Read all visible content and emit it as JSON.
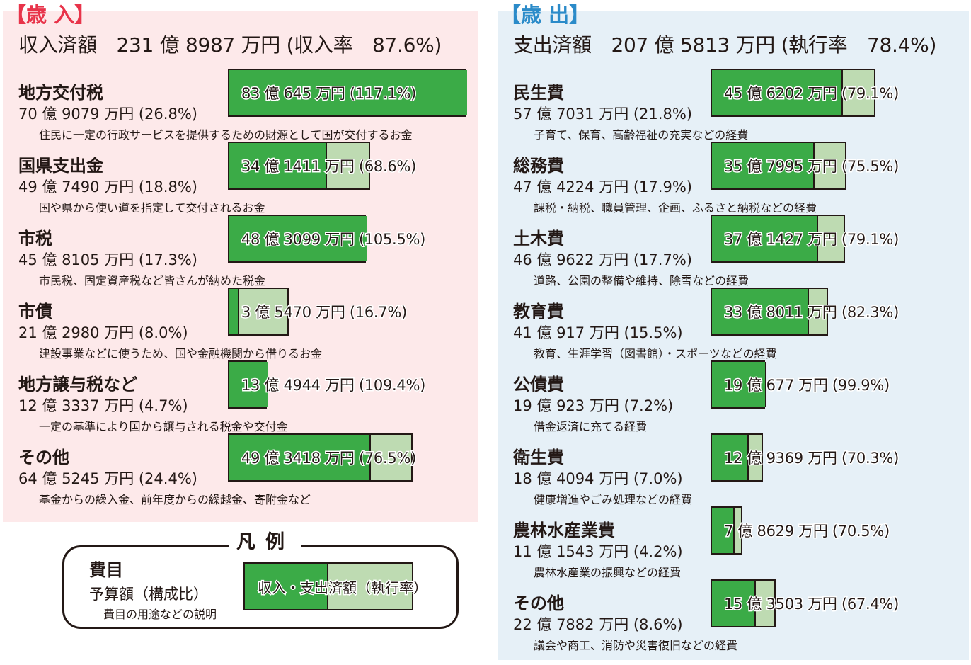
{
  "revenue": {
    "title": "【歳 入】",
    "summary": "収入済額　231 億 8987 万円 (収入率　87.6%)"
  },
  "expenditure": {
    "title": "【歳 出】",
    "summary": "支出済額　207 億 5813 万円 (執行率　78.4%)"
  },
  "legend": {
    "title": "凡例",
    "category": "費目",
    "budget": "予算額（構成比）",
    "description": "費目の用途などの説明",
    "bar_text": "収入・支出済額（執行率）"
  },
  "colors": {
    "revenue_bg": "#fde9ea",
    "expenditure_bg": "#e6f0f7",
    "revenue_title": "#e8344a",
    "expenditure_title": "#2b8bc9",
    "fill_dark": "#3bab47",
    "fill_light": "#bedbb2"
  },
  "chart_data": [
    {
      "type": "bar",
      "title": "【歳 入】",
      "subtitle": "収入済額　231 億 8987 万円 (収入率　87.6%)",
      "categories": [
        "地方交付税",
        "国県支出金",
        "市税",
        "市債",
        "地方譲与税など",
        "その他"
      ],
      "series": [
        {
          "name": "予算額",
          "values": [
            709079,
            497490,
            458105,
            212980,
            123337,
            645245
          ]
        },
        {
          "name": "収入済額",
          "values": [
            830645,
            341411,
            483099,
            35470,
            134944,
            493418
          ]
        }
      ],
      "rate_percent": [
        117.1,
        68.6,
        105.5,
        16.7,
        109.4,
        76.5
      ],
      "labels": {
        "budget": [
          "70 億 9079 万円 (26.8%)",
          "49 億 7490 万円 (18.8%)",
          "45 億 8105 万円 (17.3%)",
          "21 億 2980 万円 (8.0%)",
          "12 億 3337 万円 (4.7%)",
          "64 億 5245 万円 (24.4%)"
        ],
        "actual": [
          "83 億 645 万円 (117.1%)",
          "34 億 1411 万円 (68.6%)",
          "48 億 3099 万円 (105.5%)",
          "3 億 5470 万円 (16.7%)",
          "13 億 4944 万円 (109.4%)",
          "49 億 3418 万円 (76.5%)"
        ],
        "description": [
          "住民に一定の行政サービスを提供するための財源として国が交付するお金",
          "国や県から使い道を指定して交付されるお金",
          "市民税、固定資産税など皆さんが納めた税金",
          "建設事業などに使うため、国や金融機関から借りるお金",
          "一定の基準により国から譲与される税金や交付金",
          "基金からの繰入金、前年度からの繰越金、寄附金など"
        ]
      }
    },
    {
      "type": "bar",
      "title": "【歳 出】",
      "subtitle": "支出済額　207 億 5813 万円 (執行率　78.4%)",
      "categories": [
        "民生費",
        "総務費",
        "土木費",
        "教育費",
        "公債費",
        "衛生費",
        "農林水産業費",
        "その他"
      ],
      "series": [
        {
          "name": "予算額",
          "values": [
            577031,
            474224,
            469622,
            410917,
            190923,
            184094,
            111543,
            227882
          ]
        },
        {
          "name": "支出済額",
          "values": [
            456202,
            357995,
            371427,
            338011,
            190677,
            129369,
            78629,
            153503
          ]
        }
      ],
      "rate_percent": [
        79.1,
        75.5,
        79.1,
        82.3,
        99.9,
        70.3,
        70.5,
        67.4
      ],
      "labels": {
        "budget": [
          "57 億 7031 万円 (21.8%)",
          "47 億 4224 万円 (17.9%)",
          "46 億 9622 万円 (17.7%)",
          "41 億 917 万円 (15.5%)",
          "19 億 923 万円 (7.2%)",
          "18 億 4094 万円 (7.0%)",
          "11 億 1543 万円 (4.2%)",
          "22 億 7882 万円 (8.6%)"
        ],
        "actual": [
          "45 億 6202 万円 (79.1%)",
          "35 億 7995 万円 (75.5%)",
          "37 億 1427 万円 (79.1%)",
          "33 億 8011 万円 (82.3%)",
          "19 億 677 万円 (99.9%)",
          "12 億 9369 万円 (70.3%)",
          "7 億 8629 万円 (70.5%)",
          "15 億 3503 万円 (67.4%)"
        ],
        "description": [
          "子育て、保育、高齢福祉の充実などの経費",
          "課税・納税、職員管理、企画、ふるさと納税などの経費",
          "道路、公園の整備や維持、除雪などの経費",
          "教育、生涯学習（図書館）・スポーツなどの経費",
          "借金返済に充てる経費",
          "健康増進やごみ処理などの経費",
          "農林水産業の振興などの経費",
          "議会や商工、消防や災害復旧などの経費"
        ]
      }
    }
  ]
}
